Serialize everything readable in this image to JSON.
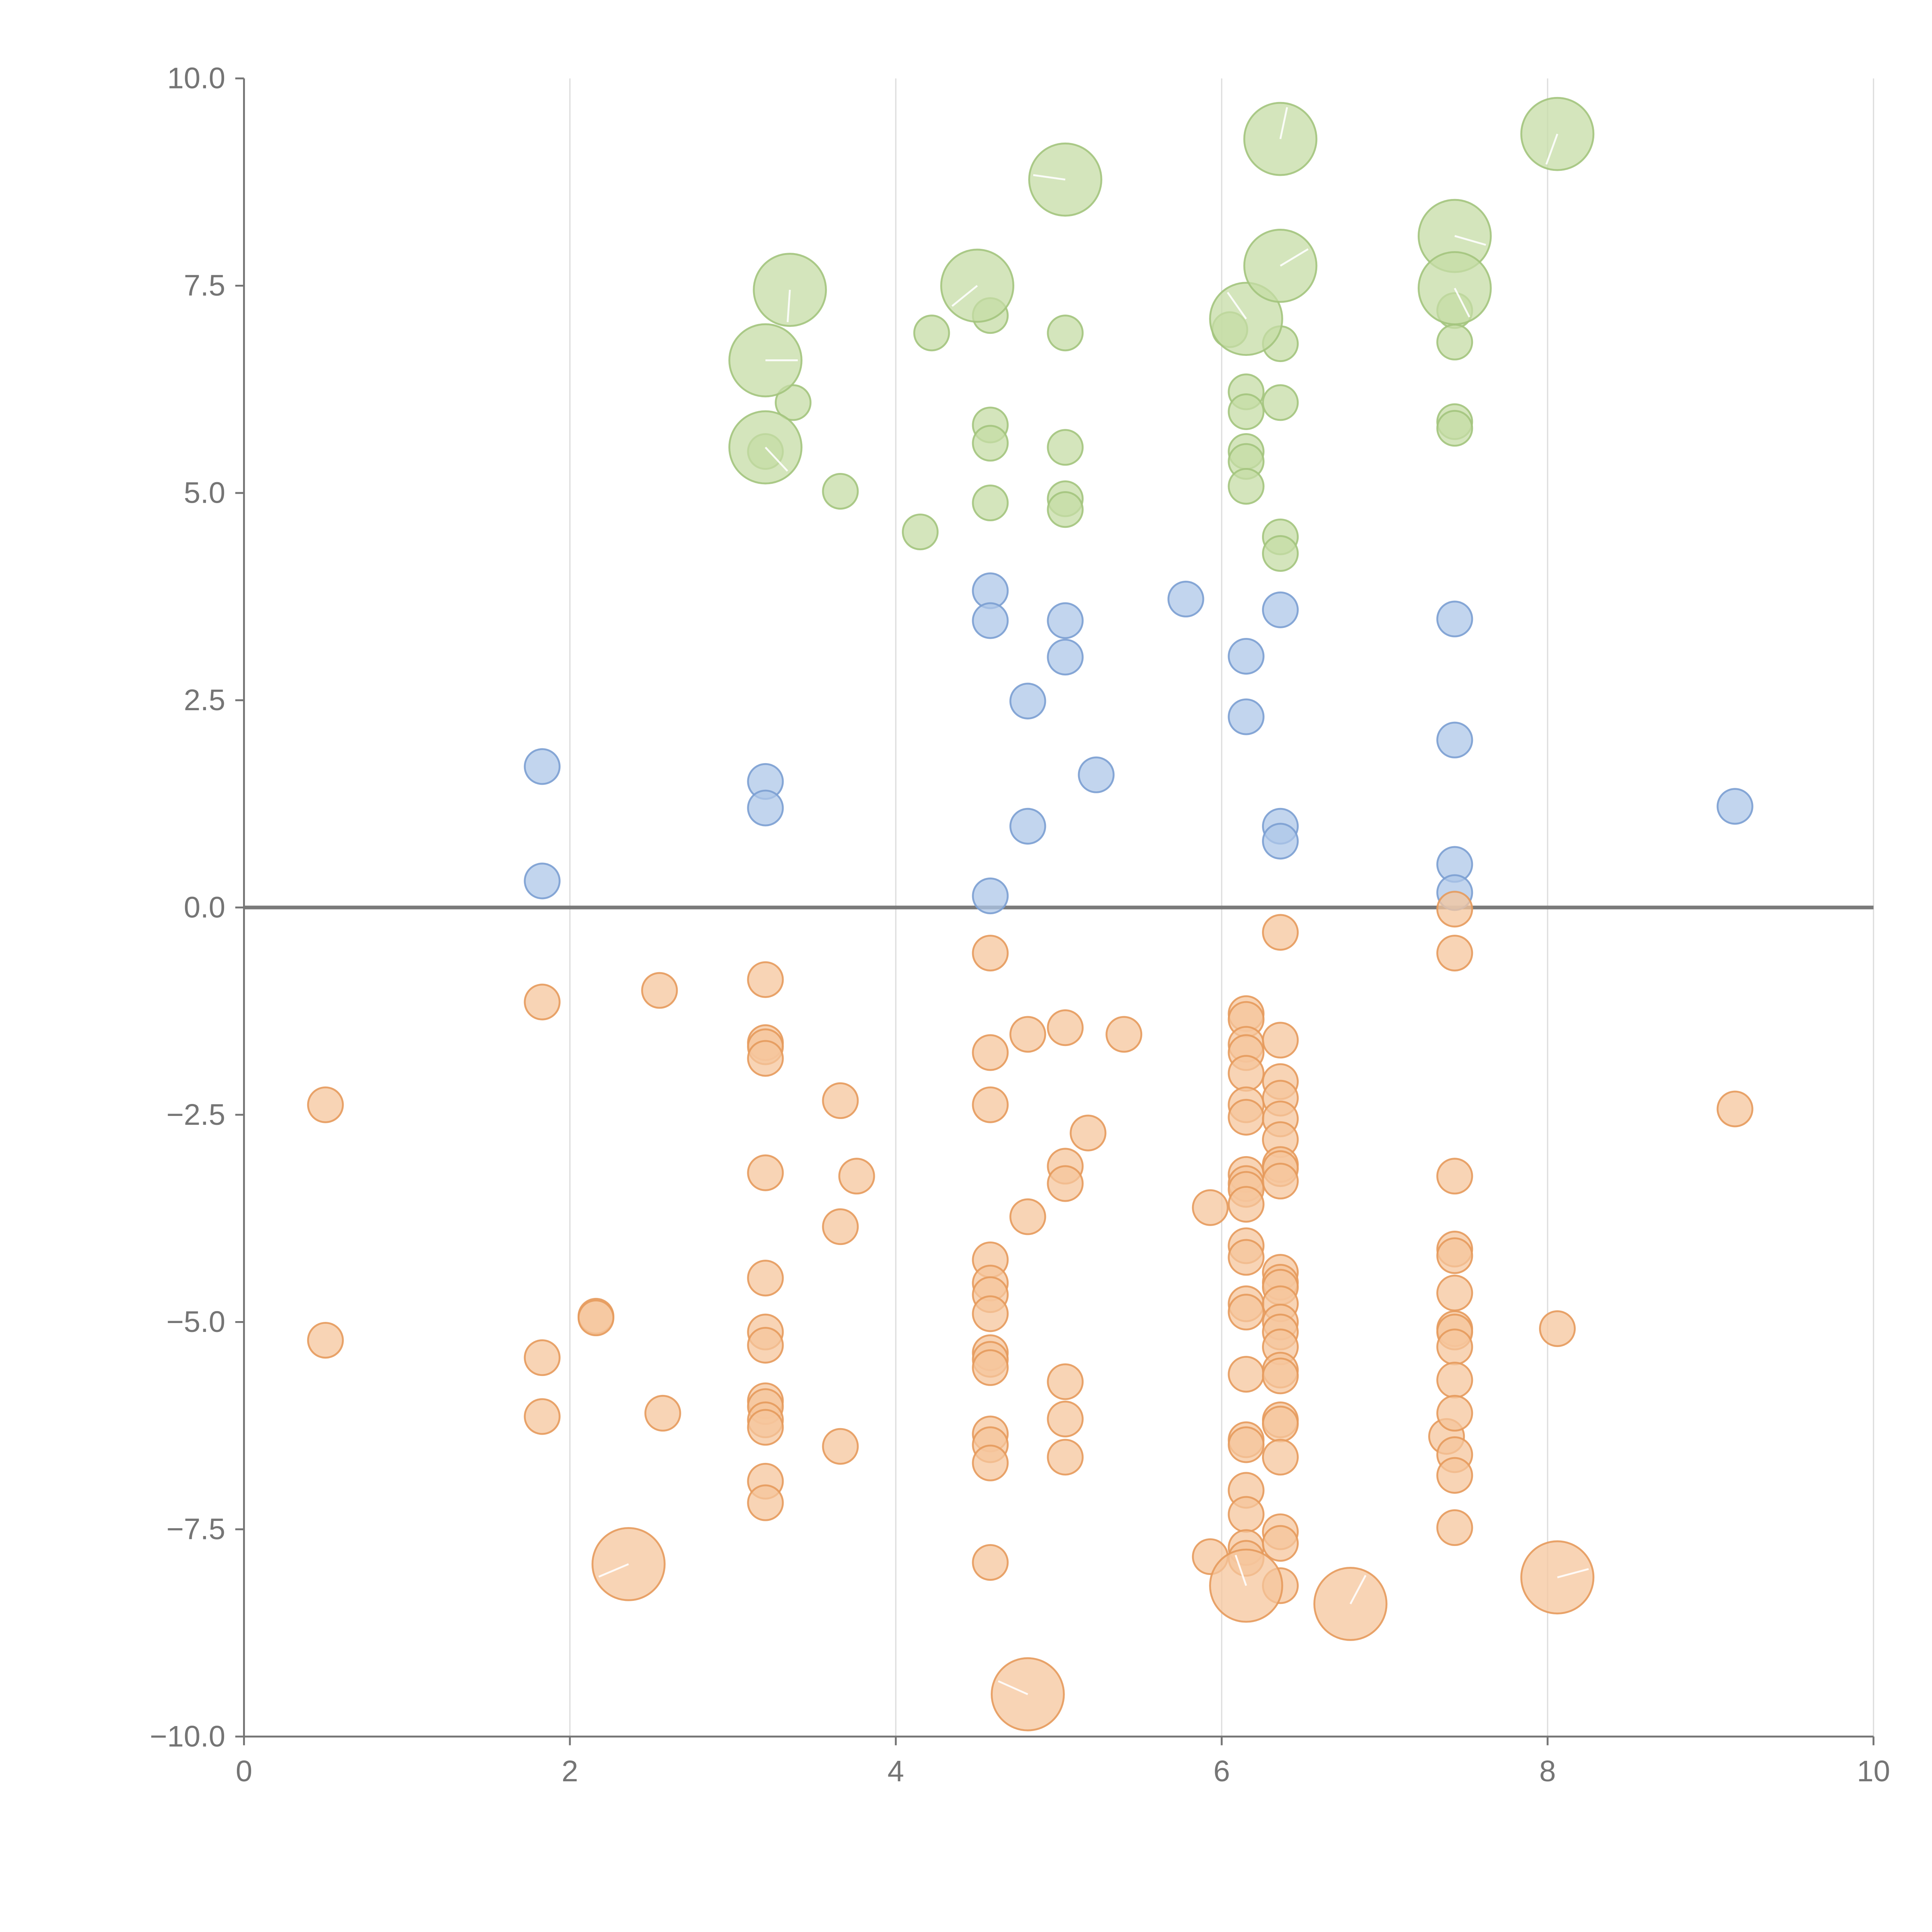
{
  "chart_data": {
    "type": "scatter",
    "title": "",
    "xlabel": "",
    "ylabel": "",
    "xlim": [
      0,
      10
    ],
    "ylim": [
      -10,
      10
    ],
    "x_ticks": [
      0,
      2,
      4,
      6,
      8,
      10
    ],
    "x_tick_labels": [
      "0",
      "2",
      "4",
      "6",
      "8",
      "10"
    ],
    "y_ticks": [
      -10,
      -7.5,
      -5,
      -2.5,
      0,
      2.5,
      5,
      7.5,
      10
    ],
    "y_tick_labels": [
      "−10.0",
      "−7.5",
      "−5.0",
      "−2.5",
      "0.0",
      "2.5",
      "5.0",
      "7.5",
      "10.0"
    ],
    "grid": {
      "x": true,
      "y": false
    },
    "zero_line": true,
    "legend": "none",
    "series": [
      {
        "color": "#aec7e8",
        "stroke": "#7b9fd1",
        "points": [
          [
            1.83,
            1.7
          ],
          [
            1.83,
            0.32
          ],
          [
            3.2,
            1.52
          ],
          [
            3.2,
            1.2
          ],
          [
            4.58,
            3.82
          ],
          [
            4.58,
            3.46
          ],
          [
            4.58,
            0.14
          ],
          [
            4.81,
            2.49
          ],
          [
            4.81,
            0.98
          ],
          [
            5.04,
            3.46
          ],
          [
            5.04,
            3.02
          ],
          [
            5.23,
            1.6
          ],
          [
            5.78,
            3.72
          ],
          [
            6.15,
            3.03
          ],
          [
            6.15,
            2.3
          ],
          [
            6.36,
            3.59
          ],
          [
            6.36,
            0.98
          ],
          [
            6.36,
            0.8
          ],
          [
            7.43,
            3.48
          ],
          [
            7.43,
            2.02
          ],
          [
            7.43,
            0.52
          ],
          [
            7.43,
            0.18
          ],
          [
            9.15,
            1.22
          ]
        ]
      },
      {
        "color": "#c5dca6",
        "stroke": "#a3c47d",
        "points": [
          [
            3.2,
            5.5
          ],
          [
            3.37,
            6.09
          ],
          [
            3.66,
            5.02
          ],
          [
            4.15,
            4.53
          ],
          [
            4.22,
            6.93
          ],
          [
            4.58,
            7.14
          ],
          [
            4.58,
            5.82
          ],
          [
            4.58,
            5.6
          ],
          [
            4.58,
            4.88
          ],
          [
            5.04,
            6.93
          ],
          [
            5.04,
            5.55
          ],
          [
            5.04,
            4.93
          ],
          [
            5.04,
            4.8
          ],
          [
            6.05,
            6.97
          ],
          [
            6.15,
            6.22
          ],
          [
            6.15,
            5.98
          ],
          [
            6.15,
            5.5
          ],
          [
            6.15,
            5.38
          ],
          [
            6.15,
            5.08
          ],
          [
            6.36,
            6.8
          ],
          [
            6.36,
            6.09
          ],
          [
            6.36,
            4.47
          ],
          [
            6.36,
            4.27
          ],
          [
            7.43,
            7.2
          ],
          [
            7.43,
            6.82
          ],
          [
            7.43,
            5.86
          ],
          [
            7.43,
            5.78
          ]
        ],
        "large_points": [
          [
            3.2,
            6.6
          ],
          [
            3.2,
            5.55
          ],
          [
            3.35,
            7.45
          ],
          [
            4.5,
            7.5
          ],
          [
            5.04,
            8.78
          ],
          [
            6.15,
            7.1
          ],
          [
            6.36,
            9.27
          ],
          [
            6.36,
            7.74
          ],
          [
            7.43,
            8.1
          ],
          [
            7.43,
            7.47
          ],
          [
            8.06,
            9.33
          ]
        ]
      },
      {
        "color": "#f5c69c",
        "stroke": "#e59a5c",
        "points": [
          [
            0.5,
            -2.38
          ],
          [
            0.5,
            -5.22
          ],
          [
            1.83,
            -1.14
          ],
          [
            1.83,
            -5.43
          ],
          [
            1.83,
            -6.14
          ],
          [
            2.16,
            -4.93
          ],
          [
            2.16,
            -4.95
          ],
          [
            2.55,
            -1.0
          ],
          [
            2.57,
            -6.1
          ],
          [
            3.2,
            -0.87
          ],
          [
            3.2,
            -1.63
          ],
          [
            3.2,
            -1.68
          ],
          [
            3.2,
            -1.82
          ],
          [
            3.2,
            -3.2
          ],
          [
            3.2,
            -4.47
          ],
          [
            3.2,
            -5.12
          ],
          [
            3.2,
            -5.28
          ],
          [
            3.2,
            -5.95
          ],
          [
            3.2,
            -6.02
          ],
          [
            3.2,
            -6.18
          ],
          [
            3.2,
            -6.27
          ],
          [
            3.2,
            -6.92
          ],
          [
            3.2,
            -7.18
          ],
          [
            3.66,
            -2.33
          ],
          [
            3.66,
            -3.85
          ],
          [
            3.66,
            -6.5
          ],
          [
            3.76,
            -3.24
          ],
          [
            4.58,
            -0.55
          ],
          [
            4.58,
            -1.75
          ],
          [
            4.58,
            -2.38
          ],
          [
            4.58,
            -4.25
          ],
          [
            4.58,
            -4.53
          ],
          [
            4.58,
            -4.67
          ],
          [
            4.58,
            -4.9
          ],
          [
            4.58,
            -5.37
          ],
          [
            4.58,
            -5.45
          ],
          [
            4.58,
            -5.55
          ],
          [
            4.58,
            -6.35
          ],
          [
            4.58,
            -6.48
          ],
          [
            4.58,
            -6.7
          ],
          [
            4.58,
            -7.9
          ],
          [
            4.81,
            -1.53
          ],
          [
            4.81,
            -3.73
          ],
          [
            5.04,
            -1.45
          ],
          [
            5.04,
            -3.12
          ],
          [
            5.04,
            -3.33
          ],
          [
            5.04,
            -5.72
          ],
          [
            5.04,
            -6.17
          ],
          [
            5.04,
            -6.63
          ],
          [
            5.18,
            -2.72
          ],
          [
            5.4,
            -1.53
          ],
          [
            5.93,
            -3.62
          ],
          [
            5.93,
            -7.83
          ],
          [
            6.15,
            -1.28
          ],
          [
            6.15,
            -1.35
          ],
          [
            6.15,
            -1.65
          ],
          [
            6.15,
            -1.75
          ],
          [
            6.15,
            -2.0
          ],
          [
            6.15,
            -2.38
          ],
          [
            6.15,
            -2.53
          ],
          [
            6.15,
            -3.22
          ],
          [
            6.15,
            -3.33
          ],
          [
            6.15,
            -3.4
          ],
          [
            6.15,
            -3.58
          ],
          [
            6.15,
            -4.08
          ],
          [
            6.15,
            -4.22
          ],
          [
            6.15,
            -4.78
          ],
          [
            6.15,
            -4.88
          ],
          [
            6.15,
            -5.63
          ],
          [
            6.15,
            -6.42
          ],
          [
            6.15,
            -6.48
          ],
          [
            6.15,
            -7.03
          ],
          [
            6.15,
            -7.32
          ],
          [
            6.15,
            -7.72
          ],
          [
            6.15,
            -7.85
          ],
          [
            6.36,
            -0.3
          ],
          [
            6.36,
            -1.6
          ],
          [
            6.36,
            -2.1
          ],
          [
            6.36,
            -2.3
          ],
          [
            6.36,
            -2.55
          ],
          [
            6.36,
            -2.8
          ],
          [
            6.36,
            -3.1
          ],
          [
            6.36,
            -3.15
          ],
          [
            6.36,
            -3.3
          ],
          [
            6.36,
            -4.4
          ],
          [
            6.36,
            -4.52
          ],
          [
            6.36,
            -4.58
          ],
          [
            6.36,
            -4.78
          ],
          [
            6.36,
            -5.0
          ],
          [
            6.36,
            -5.12
          ],
          [
            6.36,
            -5.3
          ],
          [
            6.36,
            -5.58
          ],
          [
            6.36,
            -5.65
          ],
          [
            6.36,
            -6.18
          ],
          [
            6.36,
            -6.23
          ],
          [
            6.36,
            -6.63
          ],
          [
            6.36,
            -7.53
          ],
          [
            6.36,
            -7.67
          ],
          [
            6.36,
            -8.18
          ],
          [
            7.38,
            -6.38
          ],
          [
            7.43,
            -0.02
          ],
          [
            7.43,
            -0.55
          ],
          [
            7.43,
            -3.24
          ],
          [
            7.43,
            -4.12
          ],
          [
            7.43,
            -4.2
          ],
          [
            7.43,
            -4.65
          ],
          [
            7.43,
            -5.08
          ],
          [
            7.43,
            -5.12
          ],
          [
            7.43,
            -5.3
          ],
          [
            7.43,
            -5.7
          ],
          [
            7.43,
            -6.1
          ],
          [
            7.43,
            -6.6
          ],
          [
            7.43,
            -6.85
          ],
          [
            7.43,
            -7.48
          ],
          [
            8.06,
            -5.08
          ],
          [
            9.15,
            -2.43
          ]
        ],
        "large_points": [
          [
            2.36,
            -7.92
          ],
          [
            4.81,
            -9.49
          ],
          [
            6.15,
            -8.18
          ],
          [
            6.79,
            -8.4
          ],
          [
            8.06,
            -8.08
          ]
        ]
      }
    ]
  }
}
